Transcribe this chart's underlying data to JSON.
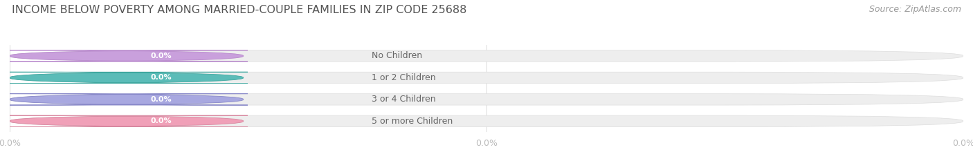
{
  "title": "INCOME BELOW POVERTY AMONG MARRIED-COUPLE FAMILIES IN ZIP CODE 25688",
  "source": "Source: ZipAtlas.com",
  "categories": [
    "No Children",
    "1 or 2 Children",
    "3 or 4 Children",
    "5 or more Children"
  ],
  "values": [
    0.0,
    0.0,
    0.0,
    0.0
  ],
  "bar_colors": [
    "#c9a0dc",
    "#5bbcb8",
    "#a8a8e0",
    "#f0a0b8"
  ],
  "bar_edge_colors": [
    "#b888cc",
    "#40a8a0",
    "#8888c8",
    "#d888a0"
  ],
  "background_color": "#ffffff",
  "bar_bg_color": "#eeeeee",
  "bar_bg_edge_color": "#dddddd",
  "value_label_color": "#ffffff",
  "title_color": "#555555",
  "source_color": "#999999",
  "label_color": "#666666",
  "tick_color": "#bbbbbb",
  "title_fontsize": 11.5,
  "source_fontsize": 9,
  "label_fontsize": 9,
  "value_fontsize": 8,
  "tick_fontsize": 9,
  "bar_height": 0.52,
  "fig_width": 14.06,
  "fig_height": 2.33,
  "dpi": 100
}
